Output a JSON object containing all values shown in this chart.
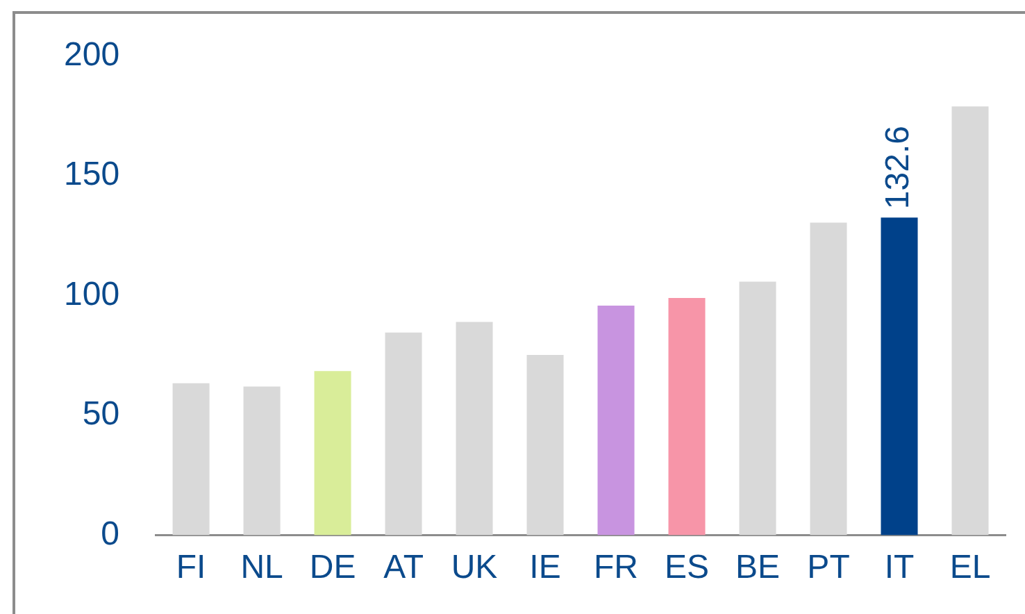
{
  "chart_data": {
    "type": "bar",
    "categories": [
      "FI",
      "NL",
      "DE",
      "AT",
      "UK",
      "IE",
      "FR",
      "ES",
      "BE",
      "PT",
      "IT",
      "EL"
    ],
    "values": [
      63.4,
      62,
      68.5,
      84.6,
      89,
      75.2,
      95.8,
      99,
      105.8,
      130.5,
      132.6,
      179
    ],
    "colors": [
      "#d9d9d9",
      "#d9d9d9",
      "#d9ed99",
      "#d9d9d9",
      "#d9d9d9",
      "#d9d9d9",
      "#c894e0",
      "#f795a8",
      "#d9d9d9",
      "#d9d9d9",
      "#00418a",
      "#d9d9d9"
    ],
    "value_labels": [
      null,
      null,
      null,
      null,
      null,
      null,
      null,
      null,
      null,
      null,
      "132.6",
      null
    ],
    "ylim": [
      0,
      200
    ],
    "yticks": [
      0,
      50,
      100,
      150,
      200
    ],
    "grid": false,
    "legend": false
  }
}
